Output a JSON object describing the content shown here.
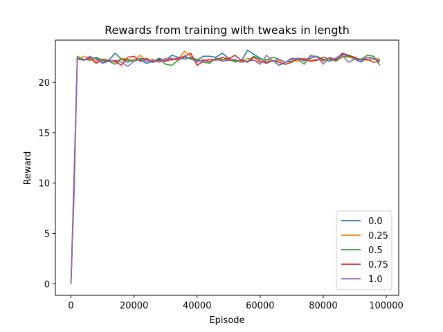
{
  "chart_data": {
    "type": "line",
    "title": "Rewards from training with tweaks in length",
    "xlabel": "Episode",
    "ylabel": "Reward",
    "xlim": [
      -4950,
      103950
    ],
    "ylim": [
      -1.15,
      24.2
    ],
    "xticks": [
      0,
      20000,
      40000,
      60000,
      80000,
      100000
    ],
    "yticks": [
      0,
      5,
      10,
      15,
      20
    ],
    "grid": false,
    "legend_position": "lower-right",
    "x": [
      0,
      1000,
      2000,
      4000,
      6000,
      8000,
      10000,
      12000,
      14000,
      16000,
      18000,
      20000,
      22000,
      24000,
      26000,
      28000,
      30000,
      32000,
      34000,
      36000,
      38000,
      40000,
      42000,
      44000,
      46000,
      48000,
      50000,
      52000,
      54000,
      56000,
      58000,
      60000,
      62000,
      64000,
      66000,
      68000,
      70000,
      72000,
      74000,
      76000,
      78000,
      80000,
      82000,
      84000,
      86000,
      88000,
      90000,
      92000,
      94000,
      96000,
      98000
    ],
    "series": [
      {
        "name": "0.0",
        "color": "#1f77b4",
        "values": [
          0.0,
          11.0,
          22.4,
          22.2,
          22.5,
          22.4,
          22.0,
          22.2,
          22.9,
          22.3,
          22.0,
          22.3,
          22.2,
          21.9,
          22.1,
          22.4,
          22.2,
          22.7,
          22.5,
          22.3,
          22.5,
          22.2,
          22.6,
          22.6,
          22.5,
          22.9,
          22.4,
          22.2,
          22.1,
          23.2,
          22.8,
          22.4,
          22.0,
          22.2,
          21.7,
          22.0,
          22.4,
          22.3,
          22.2,
          22.4,
          22.6,
          22.3,
          22.1,
          22.4,
          22.8,
          22.6,
          22.3,
          22.0,
          22.5,
          22.3,
          22.2
        ]
      },
      {
        "name": "0.25",
        "color": "#ff7f0e",
        "values": [
          0.0,
          10.0,
          22.3,
          22.6,
          22.4,
          22.1,
          22.3,
          22.2,
          22.0,
          22.4,
          22.3,
          22.2,
          22.7,
          22.1,
          22.3,
          22.0,
          22.4,
          22.2,
          22.3,
          23.1,
          22.6,
          22.0,
          22.3,
          22.1,
          22.4,
          22.2,
          22.5,
          22.0,
          22.1,
          22.4,
          22.2,
          22.0,
          22.3,
          22.1,
          22.2,
          22.0,
          22.3,
          22.1,
          22.4,
          22.2,
          22.3,
          22.1,
          22.4,
          22.2,
          22.6,
          22.5,
          22.4,
          22.3,
          22.2,
          22.4,
          22.3
        ]
      },
      {
        "name": "0.5",
        "color": "#2ca02c",
        "values": [
          0.0,
          10.0,
          22.6,
          22.3,
          22.2,
          22.5,
          22.2,
          22.1,
          21.8,
          22.3,
          22.2,
          22.1,
          22.4,
          22.3,
          22.0,
          22.3,
          21.8,
          21.7,
          22.2,
          22.6,
          22.4,
          22.3,
          22.0,
          21.9,
          22.4,
          22.3,
          22.2,
          22.1,
          22.2,
          22.1,
          22.6,
          22.3,
          22.2,
          22.5,
          22.3,
          22.0,
          22.1,
          22.3,
          21.8,
          22.7,
          22.5,
          22.2,
          22.4,
          22.1,
          22.5,
          22.6,
          22.4,
          22.3,
          22.7,
          22.6,
          21.7
        ]
      },
      {
        "name": "0.75",
        "color": "#d62728",
        "values": [
          0.0,
          9.5,
          22.4,
          22.2,
          22.4,
          21.9,
          22.3,
          22.2,
          22.1,
          21.7,
          22.5,
          22.6,
          22.1,
          22.4,
          22.0,
          22.2,
          22.1,
          22.3,
          22.4,
          22.6,
          22.9,
          21.7,
          22.1,
          22.3,
          22.2,
          22.5,
          22.3,
          22.7,
          22.2,
          22.0,
          22.5,
          22.1,
          21.9,
          22.2,
          22.0,
          21.8,
          22.0,
          22.4,
          22.3,
          22.1,
          22.2,
          22.5,
          22.3,
          22.2,
          22.9,
          22.7,
          22.5,
          22.2,
          22.3,
          22.0,
          22.1
        ]
      },
      {
        "name": "1.0",
        "color": "#9467bd",
        "values": [
          0.0,
          9.0,
          22.3,
          22.2,
          22.6,
          22.3,
          21.9,
          22.1,
          22.2,
          22.0,
          21.6,
          22.1,
          22.3,
          22.1,
          22.2,
          22.0,
          22.3,
          22.4,
          22.2,
          22.5,
          22.3,
          22.1,
          22.2,
          22.0,
          22.3,
          22.1,
          22.2,
          22.3,
          22.0,
          22.1,
          22.2,
          21.8,
          22.7,
          22.1,
          22.3,
          22.0,
          22.3,
          22.4,
          22.1,
          22.6,
          22.6,
          21.8,
          22.5,
          22.3,
          22.7,
          22.0,
          22.3,
          22.2,
          22.5,
          22.4,
          22.1
        ]
      }
    ]
  }
}
